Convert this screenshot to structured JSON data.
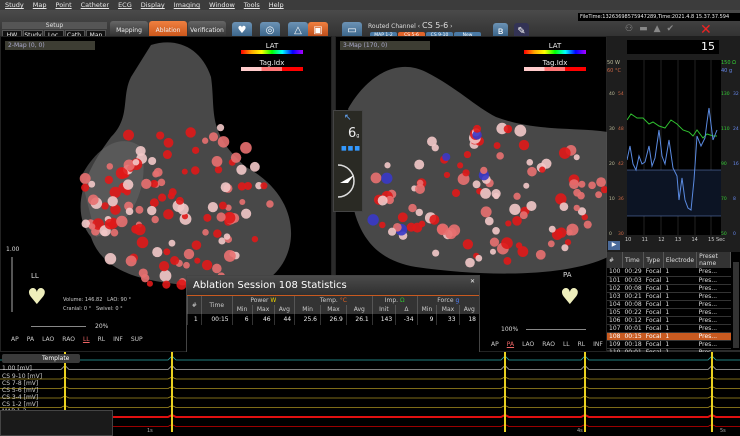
{
  "menu": [
    "Study",
    "Map",
    "Point",
    "Catheter",
    "ECG",
    "Display",
    "Imaging",
    "Window",
    "Tools",
    "Help"
  ],
  "toolbar": {
    "setup_label": "Setup",
    "setup_buttons": [
      "HW",
      "Study",
      "Loc.",
      "Cath.",
      "Map"
    ],
    "modes": [
      {
        "label": "Mapping",
        "active": false
      },
      {
        "label": "Ablation",
        "active": true
      },
      {
        "label": "Verification",
        "active": false
      }
    ],
    "routed_channel_label": "Routed Channel",
    "routed_channel_value": "CS 5-6",
    "channel_buttons": [
      {
        "label": "MAP 1-2",
        "active": false
      },
      {
        "label": "CS 5-6",
        "active": true
      },
      {
        "label": "CS 9-10",
        "active": false
      },
      {
        "label": "New",
        "active": false
      }
    ],
    "file_time": "FileTime:13263698575947289,Time:2021.4.8 15.37.37.594",
    "accent": "#e0642a"
  },
  "left_map": {
    "selector": "2-Map (0, 0)",
    "lat_label": "LAT",
    "tag_label": "Tag.Idx",
    "zoom_top": "1.00",
    "orientation": "LL",
    "volume_label": "Volume:",
    "volume": "146.82",
    "lao_label": "LAO:",
    "lao": "90 °",
    "cranial_label": "Cranial:",
    "cranial": "0 °",
    "swivel_label": "Swivel:",
    "swivel": "0 °",
    "transparency": "20%",
    "views": [
      "AP",
      "PA",
      "LAO",
      "RAO",
      "LL",
      "RL",
      "INF",
      "SUP"
    ],
    "selected_view": "LL"
  },
  "right_map": {
    "selector": "3-Map (170, 0)",
    "lat_label": "LAT",
    "tag_label": "Tag.Idx",
    "orientation": "PA",
    "transparency": "100%",
    "views": [
      "AP",
      "PA",
      "LAO",
      "RAO",
      "LL",
      "RL",
      "INF",
      "SUP"
    ],
    "selected_view": "PA"
  },
  "force_widget": {
    "value": "6",
    "unit": "g"
  },
  "stats": {
    "title": "Ablation Session 108 Statistics",
    "groups": [
      {
        "label": "Power",
        "unit": "W",
        "color": "#e8d000"
      },
      {
        "label": "Temp.",
        "unit": "°C",
        "color": "#e06020"
      },
      {
        "label": "Imp.",
        "unit": "Ω",
        "color": "#30c030"
      },
      {
        "label": "Force",
        "unit": "g",
        "color": "#5080ff"
      }
    ],
    "col_num": "#",
    "col_time": "Time",
    "sub": [
      "Min",
      "Max",
      "Avg",
      "Min",
      "Max",
      "Avg",
      "Init",
      "Δ",
      "Min",
      "Max",
      "Avg"
    ],
    "rows": [
      {
        "num": "1",
        "time": "00:15",
        "values": [
          "6",
          "46",
          "44",
          "25.6",
          "26.9",
          "26.1",
          "143",
          "-34",
          "9",
          "33",
          "18"
        ]
      }
    ]
  },
  "graph": {
    "elapsed": "15",
    "left_top_labels": [
      "50 W",
      "60 °C"
    ],
    "right_top_labels": [
      "150 Ω",
      "40 g"
    ],
    "power_ticks": [
      "40",
      "30",
      "20",
      "10",
      "0"
    ],
    "temp_ticks": [
      "54",
      "48",
      "42",
      "36",
      "30"
    ],
    "imp_ticks": [
      "130",
      "110",
      "90",
      "70",
      "50"
    ],
    "force_ticks": [
      "32",
      "24",
      "16",
      "8",
      "0"
    ],
    "x_ticks": [
      "10",
      "11",
      "12",
      "13",
      "14",
      "15 Sec"
    ],
    "colors": {
      "impedance": "#30c030",
      "force": "#5a8ae0"
    }
  },
  "ablation_table": {
    "headers": [
      "#",
      "Time",
      "Type",
      "Electrode",
      "Preset name"
    ],
    "rows": [
      [
        "100",
        "00:29",
        "Focal",
        "1",
        "Pres..."
      ],
      [
        "101",
        "00:03",
        "Focal",
        "1",
        "Pres..."
      ],
      [
        "102",
        "00:08",
        "Focal",
        "1",
        "Pres..."
      ],
      [
        "103",
        "00:21",
        "Focal",
        "1",
        "Pres..."
      ],
      [
        "104",
        "00:08",
        "Focal",
        "1",
        "Pres..."
      ],
      [
        "105",
        "00:22",
        "Focal",
        "1",
        "Pres..."
      ],
      [
        "106",
        "00:12",
        "Focal",
        "1",
        "Pres..."
      ],
      [
        "107",
        "00:01",
        "Focal",
        "1",
        "Pres..."
      ],
      [
        "108",
        "00:15",
        "Focal",
        "1",
        "Pres..."
      ],
      [
        "109",
        "00:18",
        "Focal",
        "1",
        "Pres..."
      ],
      [
        "110",
        "00:01",
        "Focal",
        "1",
        "Pres..."
      ]
    ],
    "selected": "108"
  },
  "ecg": {
    "scale": "1.00 [mV]",
    "channels": [
      "CS 9-10 [mV]",
      "CS 7-8 [mV]",
      "CS 5-6 [mV]",
      "CS 3-4 [mV]",
      "CS 1-2 [mV]",
      "MAP 1-2",
      "0.12 [mV]"
    ],
    "template_label": "Template",
    "time_ticks": [
      "1s",
      "4s",
      "5s"
    ]
  }
}
